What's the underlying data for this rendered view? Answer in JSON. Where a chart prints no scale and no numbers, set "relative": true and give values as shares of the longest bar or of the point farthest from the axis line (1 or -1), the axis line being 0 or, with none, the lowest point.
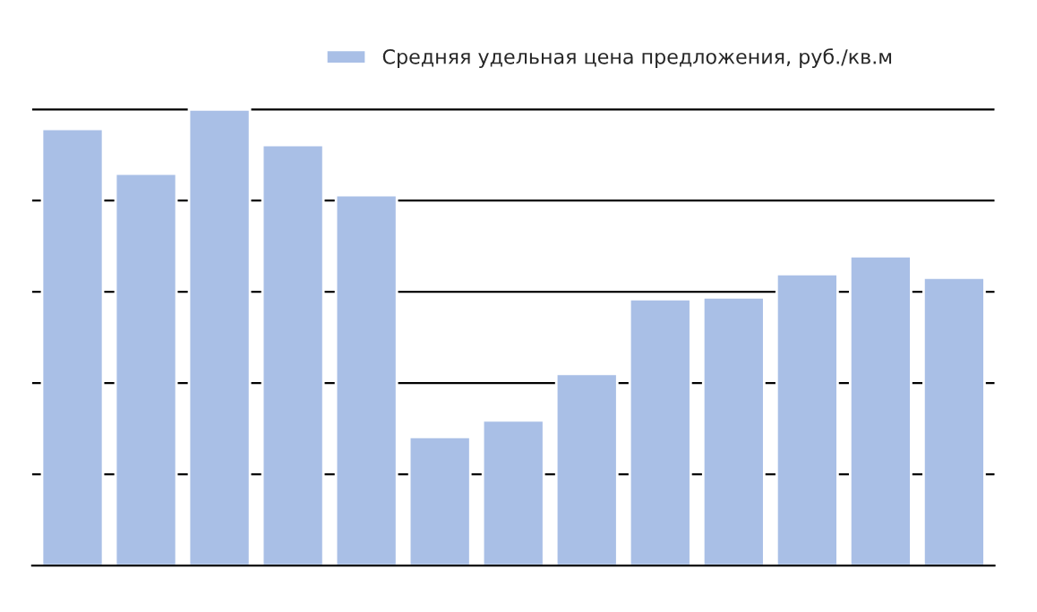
{
  "chart_data": {
    "type": "bar",
    "relative": true,
    "categories": [
      null,
      null,
      null,
      null,
      null,
      null,
      null,
      null,
      null,
      null,
      null,
      null,
      null
    ],
    "series": [
      {
        "name": "Средняя удельная цена предложения, руб./кв.м",
        "color": "#a9bfe6",
        "values": [
          0.957,
          0.859,
          1,
          0.922,
          0.812,
          0.282,
          0.318,
          0.42,
          0.584,
          0.588,
          0.639,
          0.678,
          0.631
        ]
      }
    ],
    "grid": "y",
    "legend": "top",
    "tick_labels": false
  }
}
